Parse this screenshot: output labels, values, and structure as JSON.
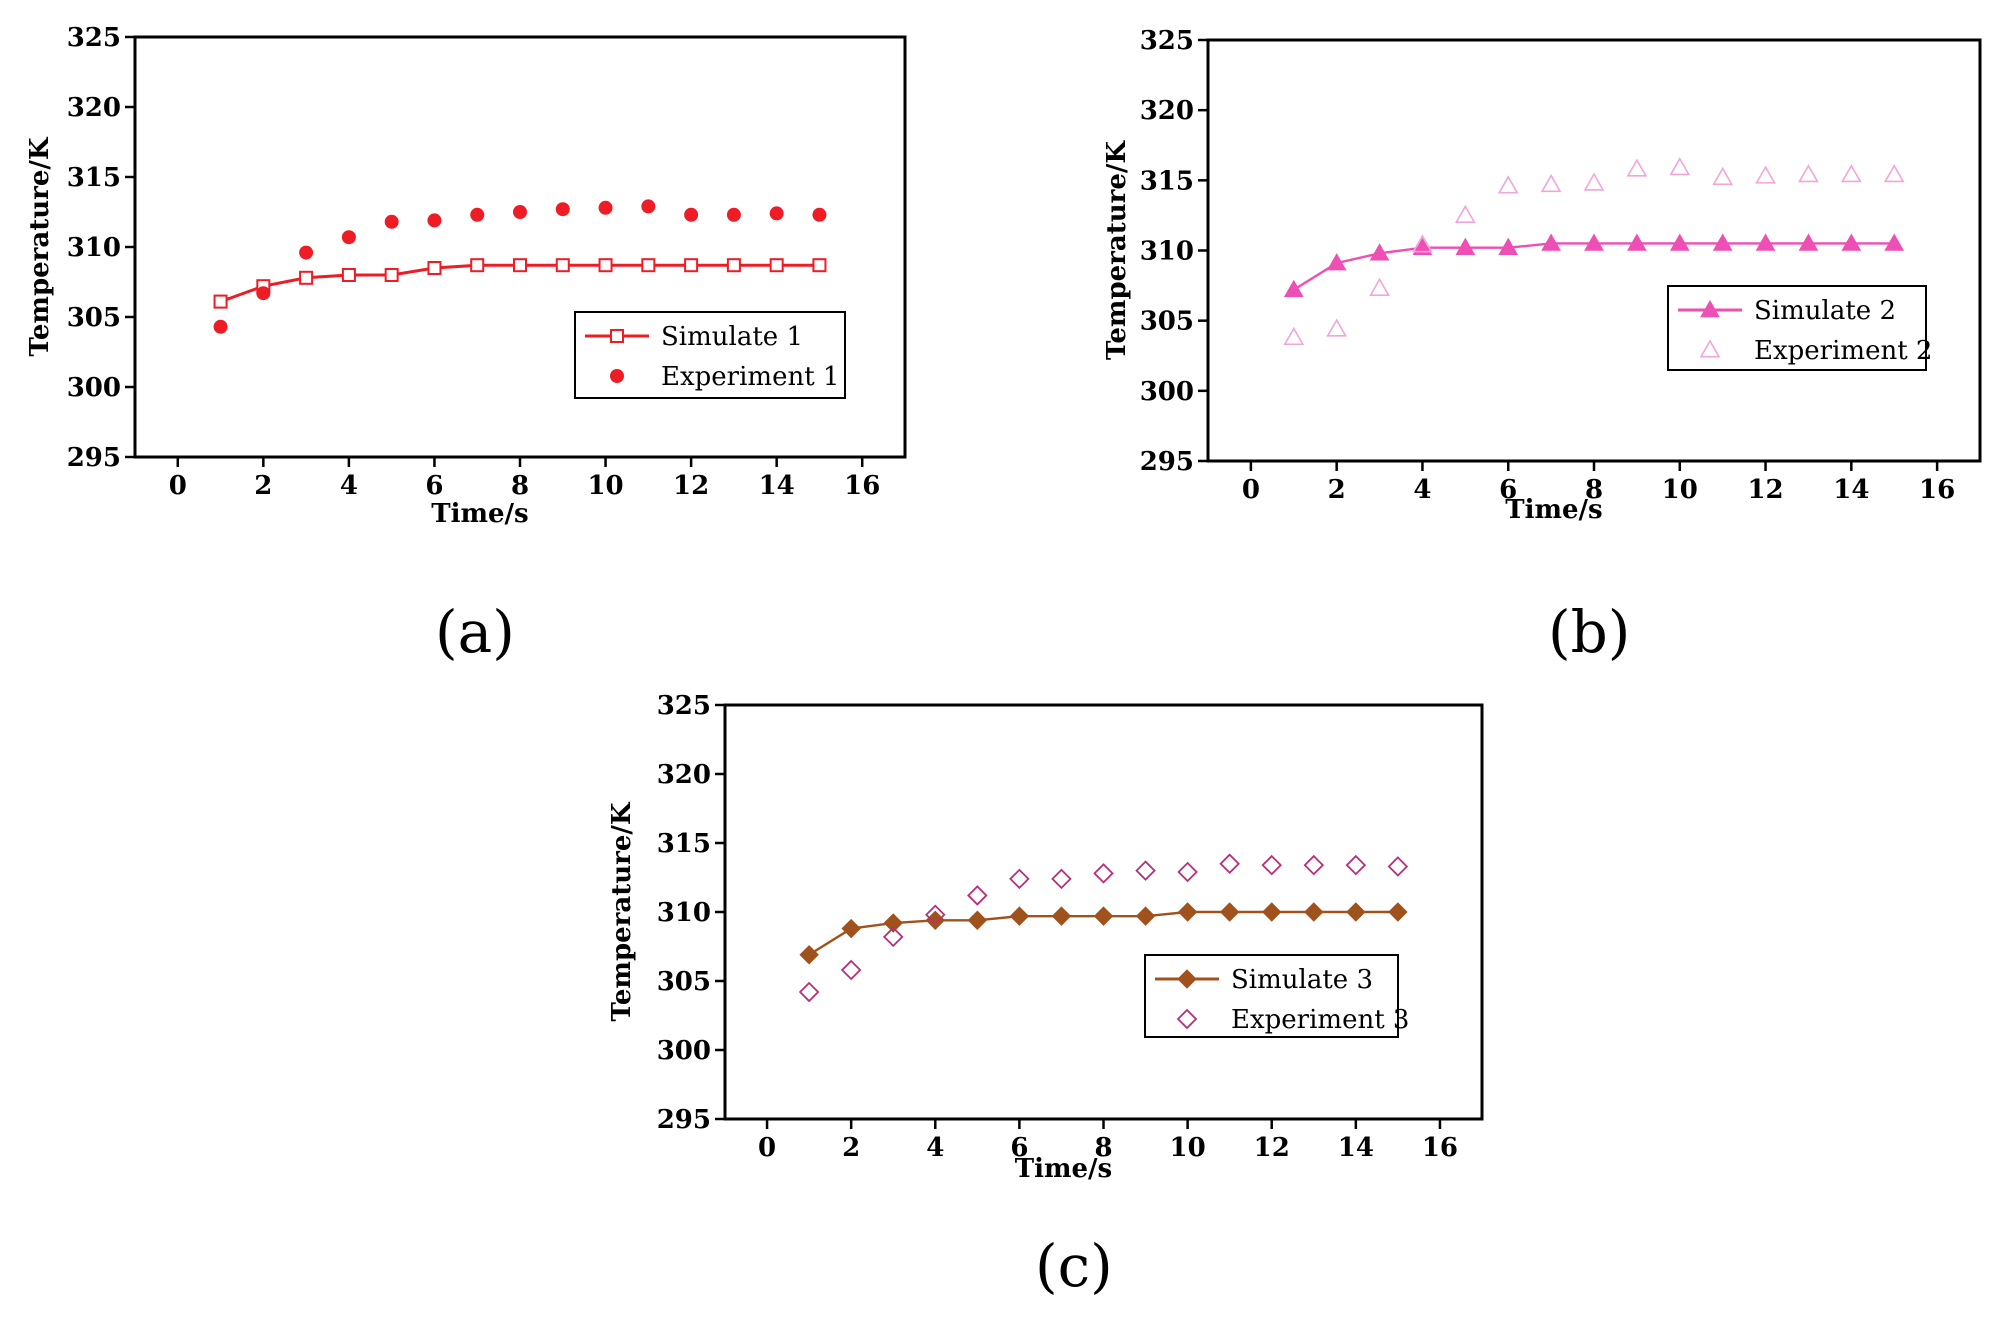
{
  "figure": {
    "panels": [
      "(a)",
      "(b)",
      "(c)"
    ]
  },
  "chart_data": [
    {
      "type": "line",
      "panel": "(a)",
      "title": "",
      "xlabel": "Time/s",
      "ylabel": "Temperature/K",
      "xlim": [
        -1,
        17
      ],
      "ylim": [
        295,
        325
      ],
      "xticks": [
        0,
        2,
        4,
        6,
        8,
        10,
        12,
        14,
        16
      ],
      "yticks": [
        295,
        300,
        305,
        310,
        315,
        320,
        325
      ],
      "legend": "bottom-right",
      "series": [
        {
          "name": "Simulate 1",
          "style": "line-open-square",
          "color": "#ee1c25",
          "x": [
            1,
            2,
            3,
            4,
            5,
            6,
            7,
            8,
            9,
            10,
            11,
            12,
            13,
            14,
            15
          ],
          "values": [
            306.1,
            307.2,
            307.8,
            308.0,
            308.0,
            308.5,
            308.7,
            308.7,
            308.7,
            308.7,
            308.7,
            308.7,
            308.7,
            308.7,
            308.7
          ]
        },
        {
          "name": "Experiment 1",
          "style": "scatter-filled-circle",
          "color": "#ee1c25",
          "x": [
            1,
            2,
            3,
            4,
            5,
            6,
            7,
            8,
            9,
            10,
            11,
            12,
            13,
            14,
            15
          ],
          "values": [
            304.3,
            306.7,
            309.6,
            310.7,
            311.8,
            311.9,
            312.3,
            312.5,
            312.7,
            312.8,
            312.9,
            312.3,
            312.3,
            312.4,
            312.3
          ]
        }
      ]
    },
    {
      "type": "line",
      "panel": "(b)",
      "title": "",
      "xlabel": "Time/s",
      "ylabel": "Temperature/K",
      "xlim": [
        -1,
        17
      ],
      "ylim": [
        295,
        325
      ],
      "xticks": [
        0,
        2,
        4,
        6,
        8,
        10,
        12,
        14,
        16
      ],
      "yticks": [
        295,
        300,
        305,
        310,
        315,
        320,
        325
      ],
      "legend": "right",
      "series": [
        {
          "name": "Simulate 2",
          "style": "line-filled-triangle",
          "color": "#ee4fb5",
          "x": [
            1,
            2,
            3,
            4,
            5,
            6,
            7,
            8,
            9,
            10,
            11,
            12,
            13,
            14,
            15
          ],
          "values": [
            307.2,
            309.1,
            309.8,
            310.2,
            310.2,
            310.2,
            310.5,
            310.5,
            310.5,
            310.5,
            310.5,
            310.5,
            310.5,
            310.5,
            310.5
          ]
        },
        {
          "name": "Experiment 2",
          "style": "scatter-open-triangle",
          "color": "#f2a6d8",
          "x": [
            1,
            2,
            3,
            4,
            5,
            6,
            7,
            8,
            9,
            10,
            11,
            12,
            13,
            14,
            15
          ],
          "values": [
            303.8,
            304.4,
            307.3,
            310.4,
            312.5,
            314.6,
            314.7,
            314.8,
            315.8,
            315.9,
            315.2,
            315.3,
            315.4,
            315.4,
            315.4
          ]
        }
      ]
    },
    {
      "type": "line",
      "panel": "(c)",
      "title": "",
      "xlabel": "Time/s",
      "ylabel": "Temperature/K",
      "xlim": [
        -1,
        17
      ],
      "ylim": [
        295,
        325
      ],
      "xticks": [
        0,
        2,
        4,
        6,
        8,
        10,
        12,
        14,
        16
      ],
      "yticks": [
        295,
        300,
        305,
        310,
        315,
        320,
        325
      ],
      "legend": "bottom-right",
      "series": [
        {
          "name": "Simulate 3",
          "style": "line-filled-diamond",
          "color": "#a0521d",
          "x": [
            1,
            2,
            3,
            4,
            5,
            6,
            7,
            8,
            9,
            10,
            11,
            12,
            13,
            14,
            15
          ],
          "values": [
            306.9,
            308.8,
            309.2,
            309.4,
            309.4,
            309.7,
            309.7,
            309.7,
            309.7,
            310.0,
            310.0,
            310.0,
            310.0,
            310.0,
            310.0
          ]
        },
        {
          "name": "Experiment 3",
          "style": "scatter-open-diamond",
          "color": "#b5307a",
          "x": [
            1,
            2,
            3,
            4,
            5,
            6,
            7,
            8,
            9,
            10,
            11,
            12,
            13,
            14,
            15
          ],
          "values": [
            304.2,
            305.8,
            308.2,
            309.8,
            311.2,
            312.4,
            312.4,
            312.8,
            313.0,
            312.9,
            313.5,
            313.4,
            313.4,
            313.4,
            313.3
          ]
        }
      ]
    }
  ]
}
